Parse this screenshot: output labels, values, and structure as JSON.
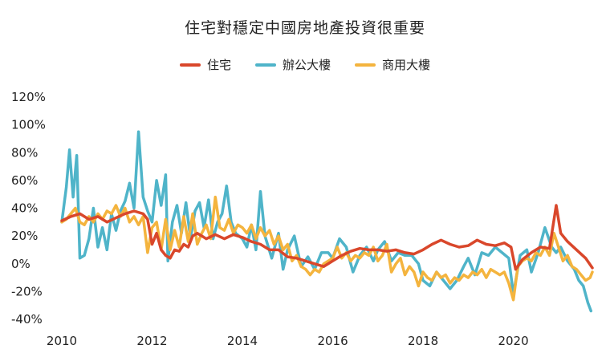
{
  "chart_data": {
    "type": "line",
    "title": "住宅對穩定中國房地產投資很重要",
    "xlabel": "",
    "ylabel": "",
    "xlim": [
      2010,
      2021.75
    ],
    "ylim": [
      -40,
      120
    ],
    "y_ticks": [
      "120%",
      "100%",
      "80%",
      "60%",
      "40%",
      "20%",
      "0%",
      "-20%",
      "-40%"
    ],
    "y_tick_values": [
      120,
      100,
      80,
      60,
      40,
      20,
      0,
      -20,
      -40
    ],
    "x_ticks": [
      "2010",
      "2012",
      "2014",
      "2016",
      "2018",
      "2020"
    ],
    "x_tick_values": [
      2010,
      2012,
      2014,
      2016,
      2018,
      2020
    ],
    "legend_position": "top-center",
    "grid": false,
    "series": [
      {
        "name": "住宅",
        "color": "#d9472b",
        "points": [
          [
            2010.0,
            31
          ],
          [
            2010.2,
            34
          ],
          [
            2010.4,
            36
          ],
          [
            2010.6,
            32
          ],
          [
            2010.8,
            34
          ],
          [
            2011.0,
            30
          ],
          [
            2011.2,
            33
          ],
          [
            2011.4,
            36
          ],
          [
            2011.6,
            38
          ],
          [
            2011.8,
            36
          ],
          [
            2011.9,
            32
          ],
          [
            2012.0,
            14
          ],
          [
            2012.1,
            22
          ],
          [
            2012.2,
            10
          ],
          [
            2012.3,
            6
          ],
          [
            2012.4,
            4
          ],
          [
            2012.5,
            10
          ],
          [
            2012.6,
            9
          ],
          [
            2012.7,
            14
          ],
          [
            2012.8,
            12
          ],
          [
            2012.9,
            20
          ],
          [
            2013.0,
            22
          ],
          [
            2013.2,
            18
          ],
          [
            2013.4,
            21
          ],
          [
            2013.6,
            18
          ],
          [
            2013.8,
            21
          ],
          [
            2014.0,
            19
          ],
          [
            2014.2,
            16
          ],
          [
            2014.4,
            14
          ],
          [
            2014.6,
            10
          ],
          [
            2014.8,
            10
          ],
          [
            2015.0,
            5
          ],
          [
            2015.2,
            4
          ],
          [
            2015.4,
            2
          ],
          [
            2015.6,
            0
          ],
          [
            2015.8,
            -2
          ],
          [
            2016.0,
            2
          ],
          [
            2016.2,
            6
          ],
          [
            2016.4,
            9
          ],
          [
            2016.6,
            11
          ],
          [
            2016.8,
            10
          ],
          [
            2017.0,
            10
          ],
          [
            2017.2,
            9
          ],
          [
            2017.4,
            10
          ],
          [
            2017.6,
            8
          ],
          [
            2017.8,
            7
          ],
          [
            2018.0,
            10
          ],
          [
            2018.2,
            14
          ],
          [
            2018.4,
            17
          ],
          [
            2018.6,
            14
          ],
          [
            2018.8,
            12
          ],
          [
            2019.0,
            13
          ],
          [
            2019.2,
            17
          ],
          [
            2019.4,
            14
          ],
          [
            2019.6,
            13
          ],
          [
            2019.8,
            15
          ],
          [
            2019.95,
            12
          ],
          [
            2020.05,
            -4
          ],
          [
            2020.2,
            3
          ],
          [
            2020.4,
            8
          ],
          [
            2020.6,
            12
          ],
          [
            2020.8,
            11
          ],
          [
            2020.95,
            42
          ],
          [
            2021.05,
            22
          ],
          [
            2021.2,
            16
          ],
          [
            2021.4,
            10
          ],
          [
            2021.6,
            4
          ],
          [
            2021.75,
            -3
          ]
        ]
      },
      {
        "name": "辦公大樓",
        "color": "#4fb4c9",
        "points": [
          [
            2010.0,
            30
          ],
          [
            2010.1,
            55
          ],
          [
            2010.17,
            82
          ],
          [
            2010.25,
            48
          ],
          [
            2010.33,
            78
          ],
          [
            2010.4,
            4
          ],
          [
            2010.5,
            6
          ],
          [
            2010.6,
            18
          ],
          [
            2010.7,
            40
          ],
          [
            2010.8,
            12
          ],
          [
            2010.9,
            26
          ],
          [
            2011.0,
            10
          ],
          [
            2011.1,
            36
          ],
          [
            2011.2,
            24
          ],
          [
            2011.3,
            38
          ],
          [
            2011.4,
            45
          ],
          [
            2011.5,
            58
          ],
          [
            2011.6,
            40
          ],
          [
            2011.7,
            95
          ],
          [
            2011.8,
            48
          ],
          [
            2011.9,
            38
          ],
          [
            2012.0,
            30
          ],
          [
            2012.1,
            60
          ],
          [
            2012.2,
            42
          ],
          [
            2012.3,
            64
          ],
          [
            2012.35,
            2
          ],
          [
            2012.45,
            30
          ],
          [
            2012.55,
            42
          ],
          [
            2012.65,
            22
          ],
          [
            2012.75,
            44
          ],
          [
            2012.85,
            18
          ],
          [
            2012.95,
            38
          ],
          [
            2013.05,
            44
          ],
          [
            2013.15,
            26
          ],
          [
            2013.25,
            46
          ],
          [
            2013.35,
            18
          ],
          [
            2013.45,
            30
          ],
          [
            2013.55,
            36
          ],
          [
            2013.65,
            56
          ],
          [
            2013.75,
            30
          ],
          [
            2013.85,
            22
          ],
          [
            2014.0,
            18
          ],
          [
            2014.1,
            12
          ],
          [
            2014.2,
            28
          ],
          [
            2014.3,
            10
          ],
          [
            2014.4,
            52
          ],
          [
            2014.5,
            20
          ],
          [
            2014.65,
            4
          ],
          [
            2014.8,
            22
          ],
          [
            2014.9,
            -4
          ],
          [
            2015.0,
            10
          ],
          [
            2015.15,
            20
          ],
          [
            2015.3,
            -2
          ],
          [
            2015.45,
            5
          ],
          [
            2015.6,
            -4
          ],
          [
            2015.75,
            8
          ],
          [
            2015.9,
            8
          ],
          [
            2016.0,
            4
          ],
          [
            2016.15,
            18
          ],
          [
            2016.3,
            12
          ],
          [
            2016.45,
            -6
          ],
          [
            2016.6,
            6
          ],
          [
            2016.75,
            12
          ],
          [
            2016.9,
            2
          ],
          [
            2017.0,
            10
          ],
          [
            2017.15,
            16
          ],
          [
            2017.3,
            2
          ],
          [
            2017.45,
            8
          ],
          [
            2017.6,
            6
          ],
          [
            2017.75,
            6
          ],
          [
            2017.9,
            0
          ],
          [
            2018.0,
            -12
          ],
          [
            2018.15,
            -16
          ],
          [
            2018.3,
            -6
          ],
          [
            2018.45,
            -12
          ],
          [
            2018.6,
            -18
          ],
          [
            2018.75,
            -12
          ],
          [
            2018.9,
            -2
          ],
          [
            2019.0,
            4
          ],
          [
            2019.15,
            -8
          ],
          [
            2019.3,
            8
          ],
          [
            2019.45,
            6
          ],
          [
            2019.6,
            12
          ],
          [
            2019.75,
            8
          ],
          [
            2019.9,
            4
          ],
          [
            2020.0,
            -22
          ],
          [
            2020.15,
            6
          ],
          [
            2020.3,
            10
          ],
          [
            2020.4,
            -6
          ],
          [
            2020.55,
            8
          ],
          [
            2020.7,
            26
          ],
          [
            2020.85,
            12
          ],
          [
            2020.95,
            8
          ],
          [
            2021.05,
            12
          ],
          [
            2021.2,
            2
          ],
          [
            2021.35,
            -4
          ],
          [
            2021.45,
            -12
          ],
          [
            2021.55,
            -16
          ],
          [
            2021.65,
            -28
          ],
          [
            2021.72,
            -34
          ]
        ]
      },
      {
        "name": "商用大樓",
        "color": "#f4b43e",
        "points": [
          [
            2010.0,
            30
          ],
          [
            2010.1,
            32
          ],
          [
            2010.2,
            36
          ],
          [
            2010.3,
            40
          ],
          [
            2010.4,
            30
          ],
          [
            2010.5,
            28
          ],
          [
            2010.6,
            34
          ],
          [
            2010.7,
            30
          ],
          [
            2010.8,
            36
          ],
          [
            2010.9,
            32
          ],
          [
            2011.0,
            38
          ],
          [
            2011.1,
            36
          ],
          [
            2011.2,
            42
          ],
          [
            2011.3,
            34
          ],
          [
            2011.4,
            40
          ],
          [
            2011.5,
            30
          ],
          [
            2011.6,
            34
          ],
          [
            2011.7,
            28
          ],
          [
            2011.8,
            34
          ],
          [
            2011.9,
            8
          ],
          [
            2012.0,
            26
          ],
          [
            2012.1,
            30
          ],
          [
            2012.2,
            10
          ],
          [
            2012.3,
            32
          ],
          [
            2012.4,
            10
          ],
          [
            2012.5,
            24
          ],
          [
            2012.6,
            12
          ],
          [
            2012.7,
            34
          ],
          [
            2012.8,
            16
          ],
          [
            2012.9,
            36
          ],
          [
            2013.0,
            14
          ],
          [
            2013.1,
            22
          ],
          [
            2013.2,
            28
          ],
          [
            2013.3,
            18
          ],
          [
            2013.4,
            48
          ],
          [
            2013.5,
            26
          ],
          [
            2013.6,
            24
          ],
          [
            2013.7,
            32
          ],
          [
            2013.8,
            22
          ],
          [
            2013.9,
            28
          ],
          [
            2014.0,
            26
          ],
          [
            2014.1,
            22
          ],
          [
            2014.2,
            28
          ],
          [
            2014.3,
            18
          ],
          [
            2014.4,
            26
          ],
          [
            2014.5,
            20
          ],
          [
            2014.6,
            24
          ],
          [
            2014.7,
            14
          ],
          [
            2014.8,
            20
          ],
          [
            2014.9,
            10
          ],
          [
            2015.0,
            14
          ],
          [
            2015.1,
            2
          ],
          [
            2015.2,
            6
          ],
          [
            2015.3,
            -2
          ],
          [
            2015.4,
            -4
          ],
          [
            2015.5,
            -8
          ],
          [
            2015.6,
            -4
          ],
          [
            2015.7,
            -6
          ],
          [
            2015.8,
            0
          ],
          [
            2015.9,
            2
          ],
          [
            2016.0,
            4
          ],
          [
            2016.1,
            12
          ],
          [
            2016.2,
            4
          ],
          [
            2016.3,
            8
          ],
          [
            2016.4,
            2
          ],
          [
            2016.5,
            6
          ],
          [
            2016.6,
            4
          ],
          [
            2016.7,
            8
          ],
          [
            2016.8,
            6
          ],
          [
            2016.9,
            12
          ],
          [
            2017.0,
            2
          ],
          [
            2017.1,
            6
          ],
          [
            2017.2,
            14
          ],
          [
            2017.3,
            -6
          ],
          [
            2017.4,
            0
          ],
          [
            2017.5,
            4
          ],
          [
            2017.6,
            -8
          ],
          [
            2017.7,
            -2
          ],
          [
            2017.8,
            -6
          ],
          [
            2017.9,
            -16
          ],
          [
            2018.0,
            -6
          ],
          [
            2018.1,
            -10
          ],
          [
            2018.2,
            -12
          ],
          [
            2018.3,
            -6
          ],
          [
            2018.4,
            -10
          ],
          [
            2018.5,
            -8
          ],
          [
            2018.6,
            -14
          ],
          [
            2018.7,
            -10
          ],
          [
            2018.8,
            -12
          ],
          [
            2018.9,
            -8
          ],
          [
            2019.0,
            -10
          ],
          [
            2019.1,
            -6
          ],
          [
            2019.2,
            -8
          ],
          [
            2019.3,
            -4
          ],
          [
            2019.4,
            -10
          ],
          [
            2019.5,
            -4
          ],
          [
            2019.6,
            -6
          ],
          [
            2019.7,
            -8
          ],
          [
            2019.8,
            -6
          ],
          [
            2019.9,
            -14
          ],
          [
            2020.0,
            -26
          ],
          [
            2020.1,
            -2
          ],
          [
            2020.2,
            2
          ],
          [
            2020.3,
            4
          ],
          [
            2020.4,
            2
          ],
          [
            2020.5,
            8
          ],
          [
            2020.6,
            6
          ],
          [
            2020.7,
            12
          ],
          [
            2020.8,
            6
          ],
          [
            2020.9,
            22
          ],
          [
            2021.0,
            12
          ],
          [
            2021.1,
            2
          ],
          [
            2021.2,
            6
          ],
          [
            2021.3,
            -2
          ],
          [
            2021.4,
            -4
          ],
          [
            2021.5,
            -8
          ],
          [
            2021.6,
            -12
          ],
          [
            2021.7,
            -10
          ],
          [
            2021.75,
            -6
          ]
        ]
      }
    ]
  }
}
